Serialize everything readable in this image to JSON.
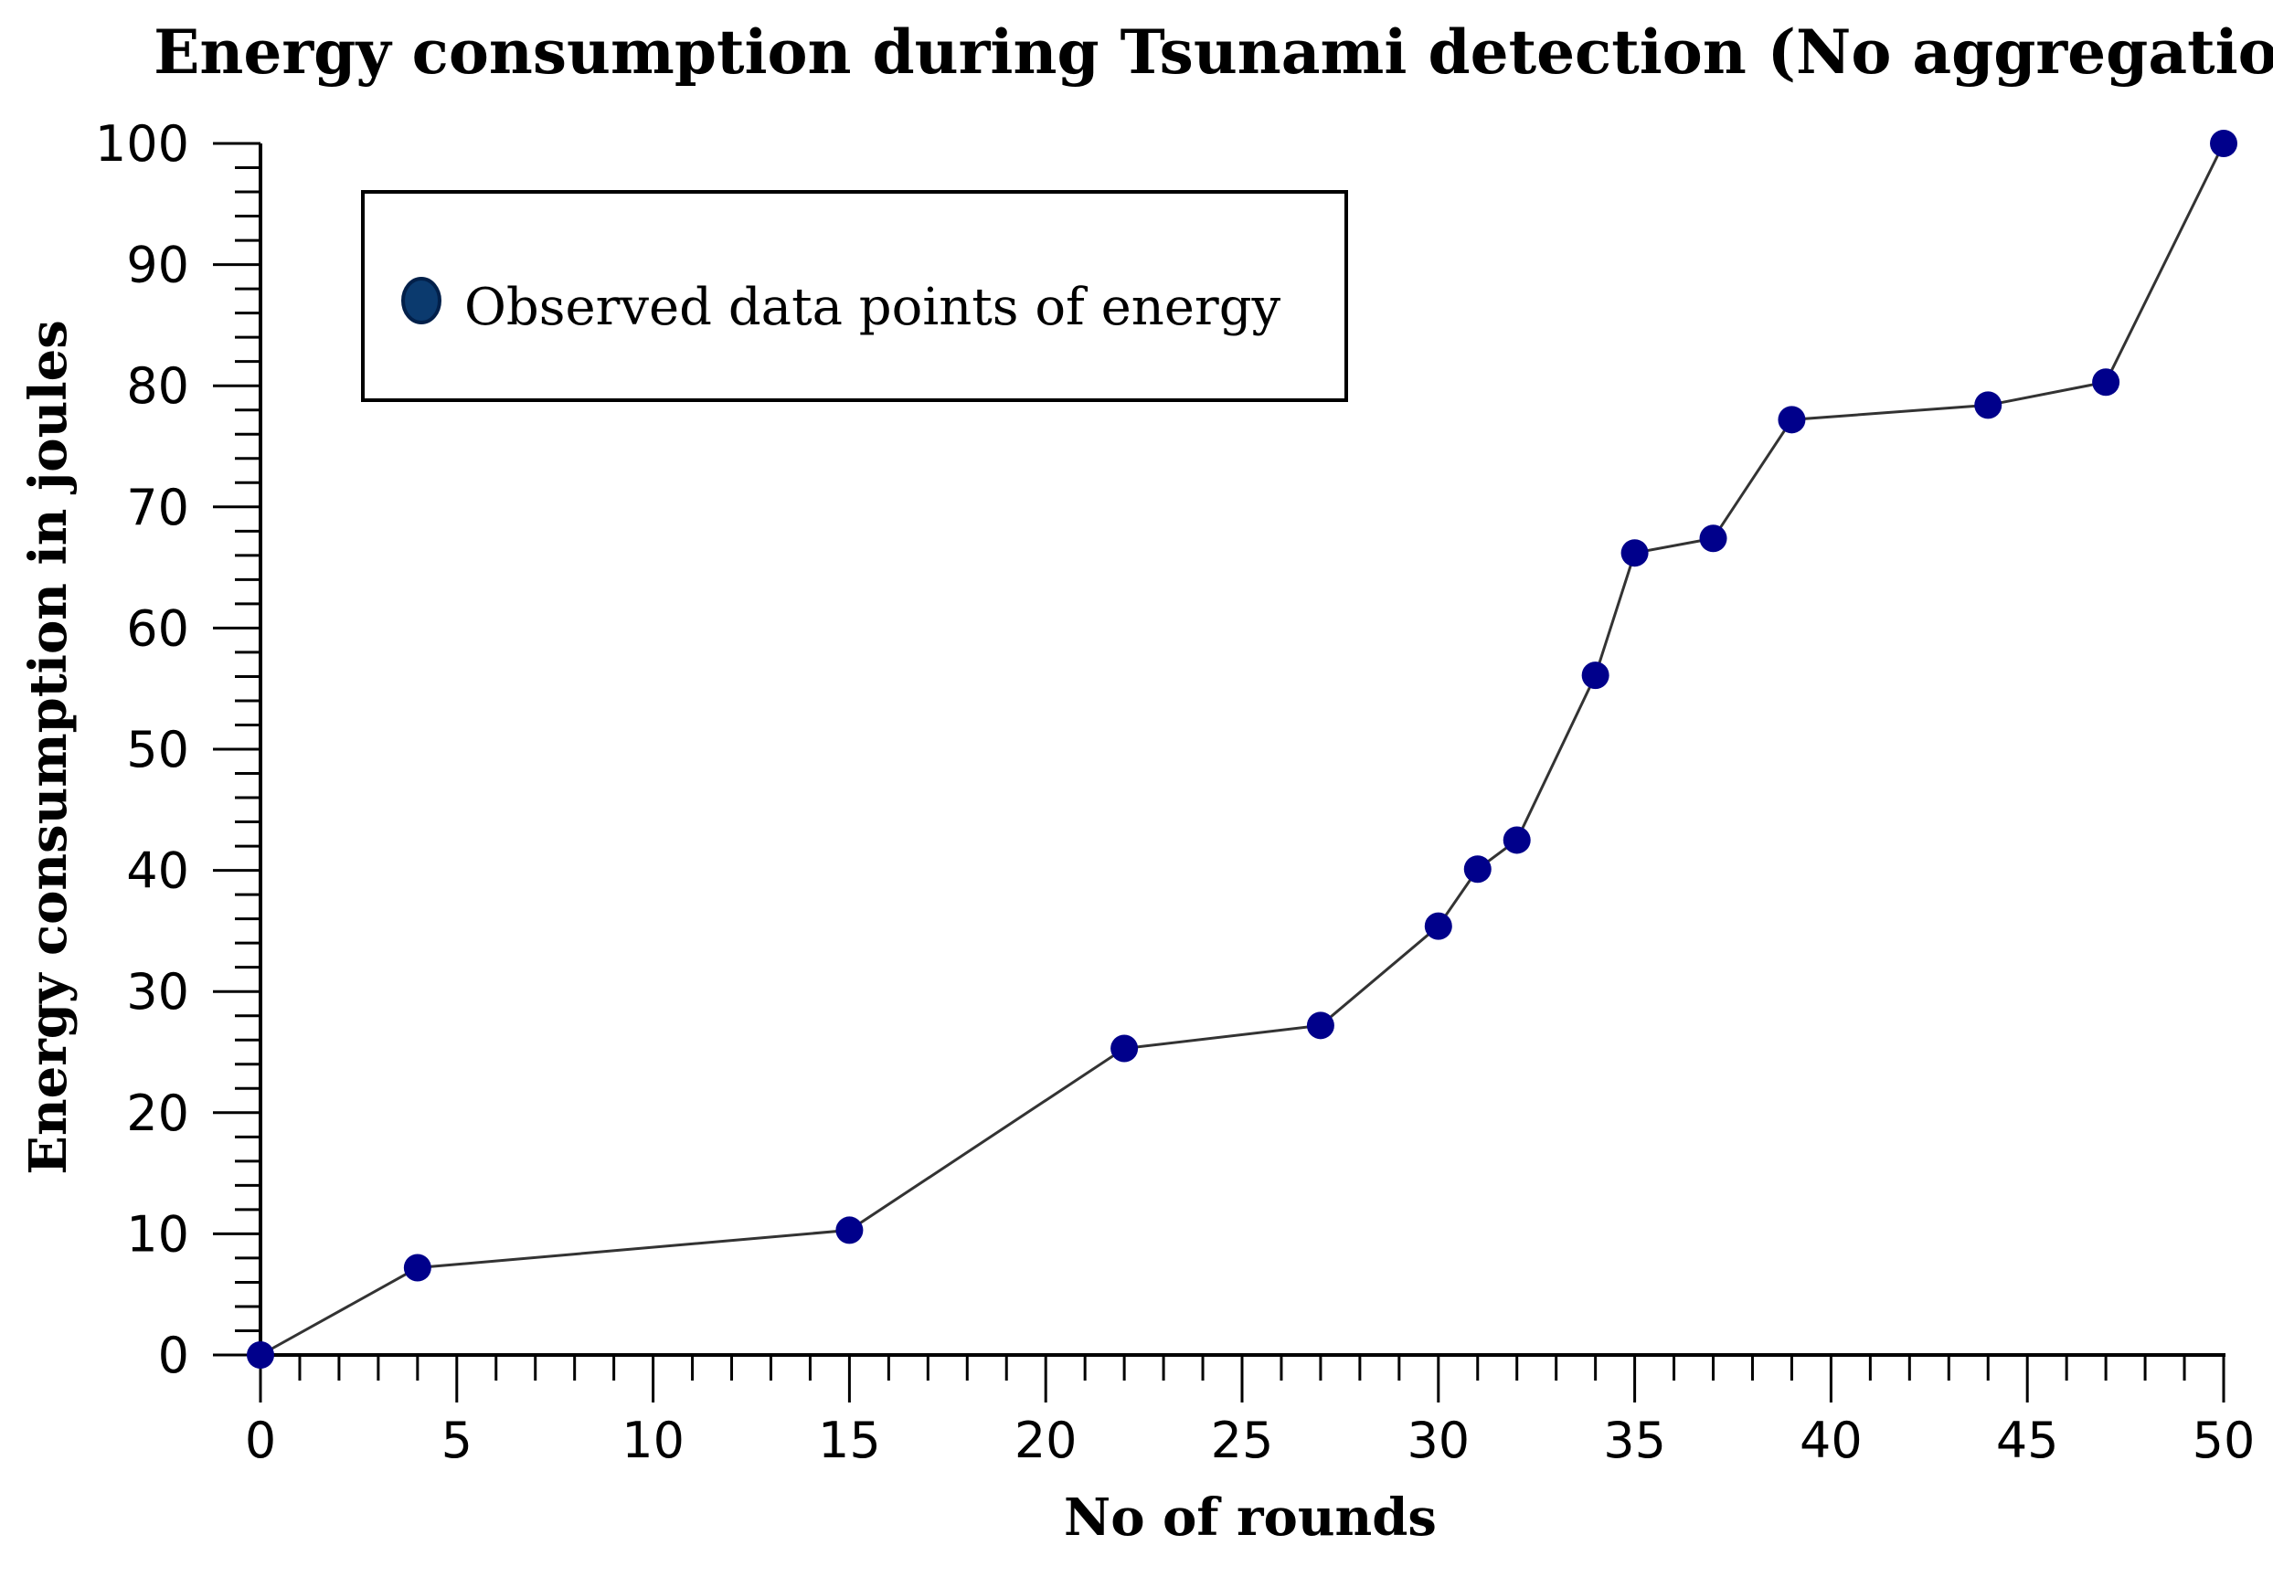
{
  "chart_data": {
    "type": "line",
    "title": "Energy consumption during Tsunami detection (No aggregation)",
    "xlabel": "No of rounds",
    "ylabel": "Energy consumption in joules",
    "xlim": [
      0,
      50
    ],
    "ylim": [
      0,
      100
    ],
    "xticks": [
      0,
      5,
      10,
      15,
      20,
      25,
      30,
      35,
      40,
      45,
      50
    ],
    "yticks": [
      0,
      10,
      20,
      30,
      40,
      50,
      60,
      70,
      80,
      90,
      100
    ],
    "legend": {
      "label": "Observed data points of energy",
      "position": "top-left"
    },
    "grid": false,
    "series": [
      {
        "name": "Observed data points of energy",
        "marker_color": "#00008b",
        "line_color": "#333333",
        "x": [
          0,
          4,
          15,
          22,
          27,
          30,
          31,
          32,
          34,
          35,
          37,
          39,
          44,
          47,
          50
        ],
        "y": [
          0,
          7.2,
          10.3,
          25.3,
          27.2,
          35.4,
          40.1,
          42.5,
          56.1,
          66.2,
          67.4,
          77.2,
          78.4,
          80.3,
          100
        ]
      }
    ]
  }
}
